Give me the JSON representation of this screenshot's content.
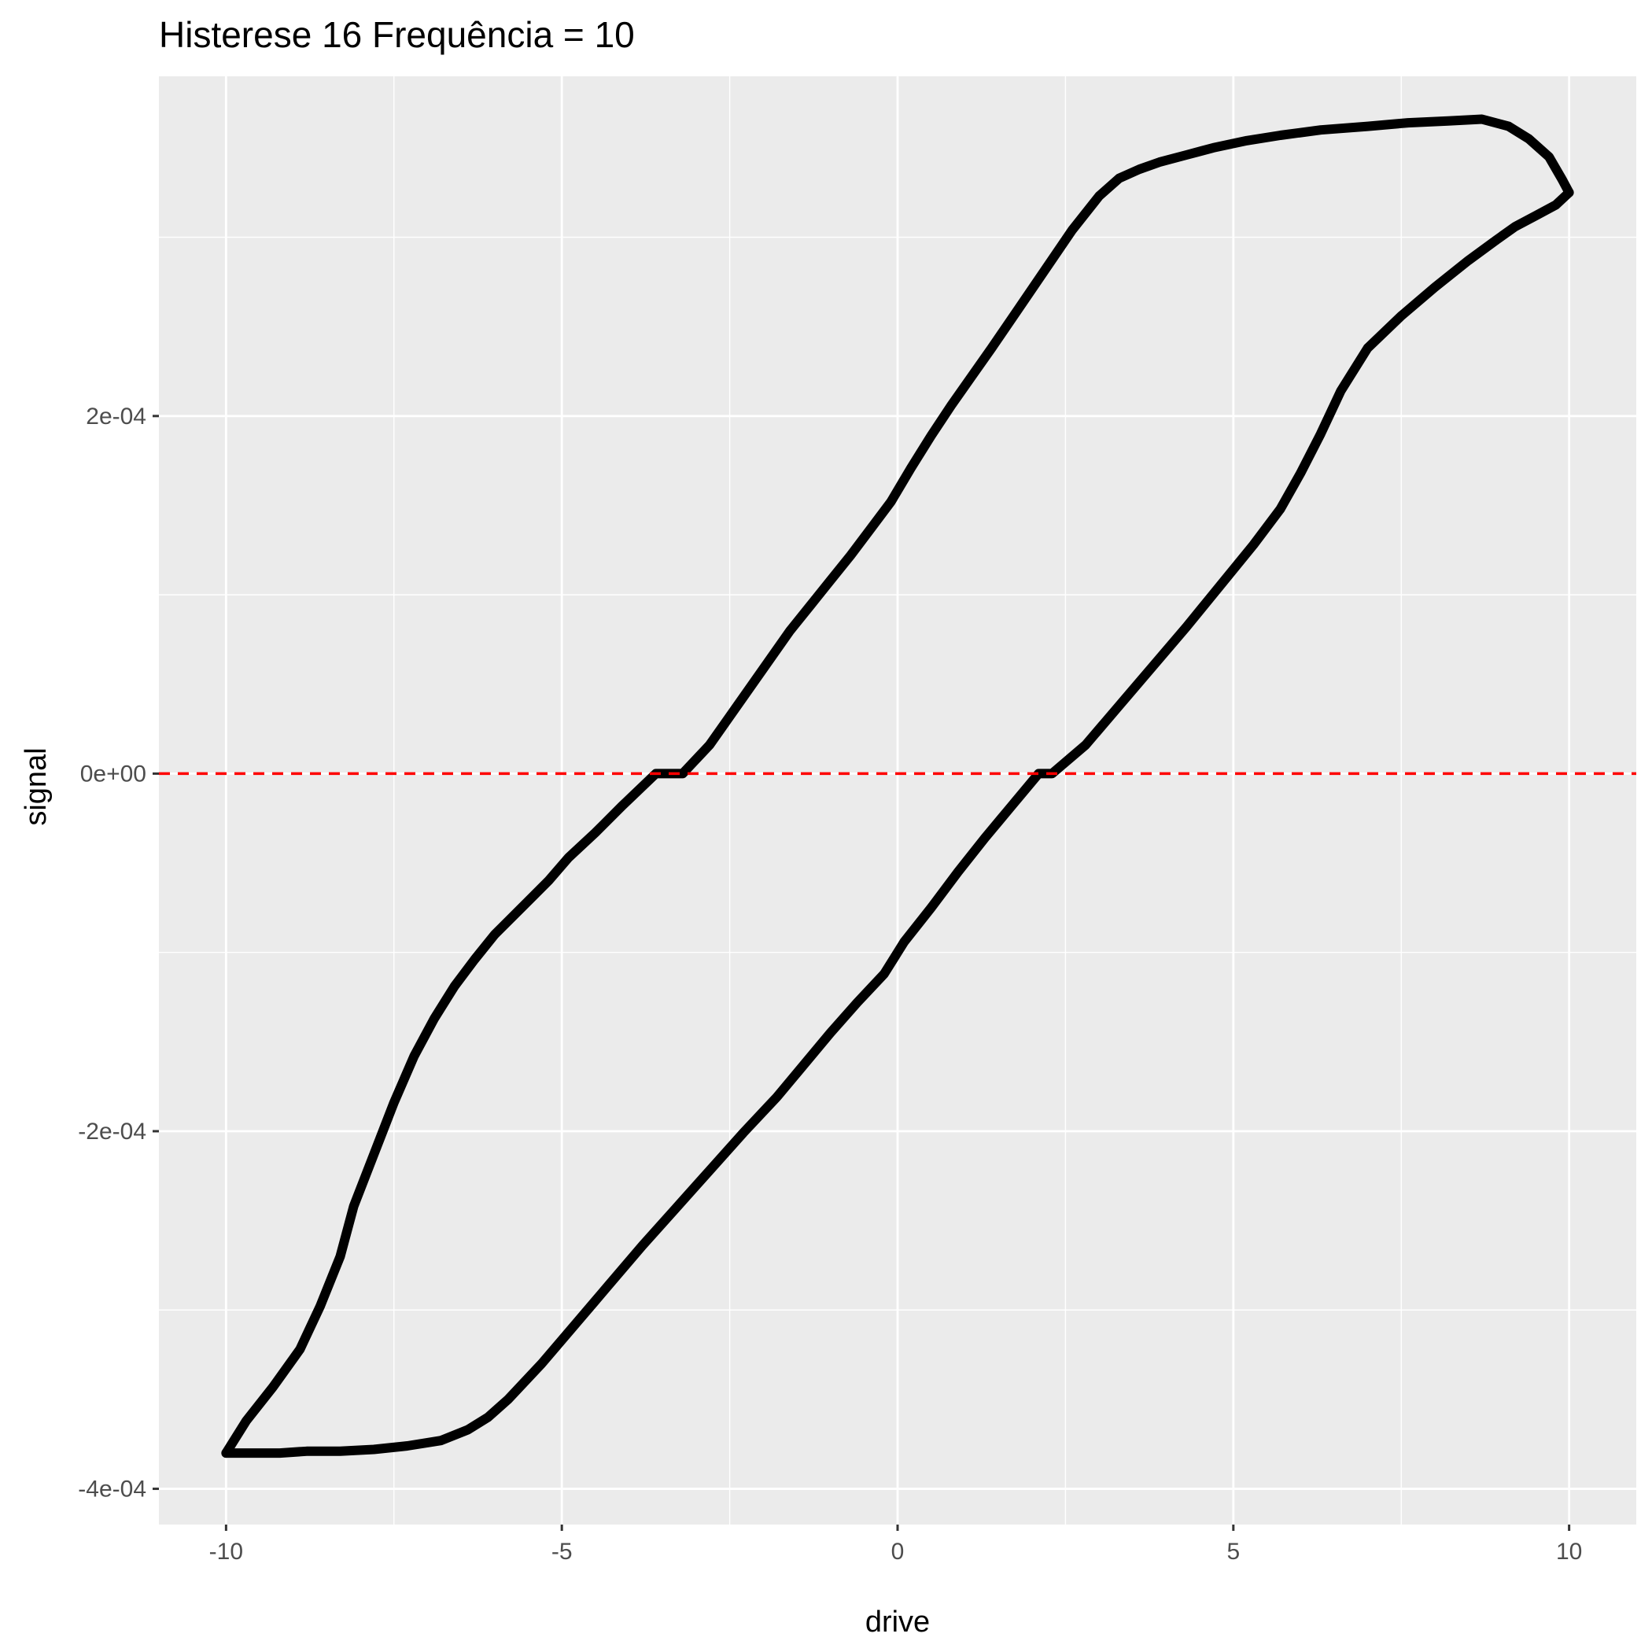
{
  "chart_data": {
    "type": "line",
    "title": "Histerese 16 Frequência = 10",
    "xlabel": "drive",
    "ylabel": "signal",
    "xlim": [
      -11,
      11
    ],
    "ylim": [
      -0.00042,
      0.00039
    ],
    "x_ticks": [
      {
        "value": -10,
        "label": "-10"
      },
      {
        "value": -5,
        "label": "-5"
      },
      {
        "value": 0,
        "label": "0"
      },
      {
        "value": 5,
        "label": "5"
      },
      {
        "value": 10,
        "label": "10"
      }
    ],
    "y_ticks": [
      {
        "value": -0.0004,
        "label": "-4e-04"
      },
      {
        "value": -0.0002,
        "label": "-2e-04"
      },
      {
        "value": 0,
        "label": "0e+00"
      },
      {
        "value": 0.0002,
        "label": "2e-04"
      }
    ],
    "x_minor": [
      -7.5,
      -2.5,
      2.5,
      7.5
    ],
    "y_minor": [
      -0.0003,
      -0.0001,
      0.0001,
      0.0003
    ],
    "grid": true,
    "reference_line": {
      "y": 0,
      "color": "#ff0000",
      "style": "dashed"
    },
    "line_color": "#000000",
    "background_color": "#ebebeb",
    "series": [
      {
        "x": [
          -10.0,
          -9.7,
          -9.3,
          -8.9,
          -8.6,
          -8.3,
          -8.1,
          -7.8,
          -7.5,
          -7.2,
          -6.9,
          -6.6,
          -6.3,
          -6.0,
          -5.6,
          -5.2,
          -4.9,
          -4.5,
          -4.1,
          -3.6,
          -3.2,
          -2.8,
          -2.5,
          -2.2,
          -1.9,
          -1.6,
          -1.3,
          -1.0,
          -0.7,
          -0.4,
          -0.1,
          0.2,
          0.5,
          0.8,
          1.1,
          1.4,
          1.8,
          2.2,
          2.6,
          3.0,
          3.3,
          3.6,
          3.9,
          4.3,
          4.7,
          5.2,
          5.7,
          6.3,
          7.0,
          7.6,
          8.2,
          8.7,
          9.1,
          9.4,
          9.7,
          9.9,
          10.0
        ],
        "y": [
          -0.00038,
          -0.000362,
          -0.000343,
          -0.000322,
          -0.000298,
          -0.00027,
          -0.000242,
          -0.000213,
          -0.000184,
          -0.000158,
          -0.000137,
          -0.000119,
          -0.000104,
          -9e-05,
          -7.5e-05,
          -6e-05,
          -4.7e-05,
          -3.3e-05,
          -1.8e-05,
          0.0,
          0.0,
          1.6e-05,
          3.2e-05,
          4.8e-05,
          6.4e-05,
          8e-05,
          9.4e-05,
          0.000108,
          0.000122,
          0.000137,
          0.000152,
          0.000171,
          0.000189,
          0.000206,
          0.000222,
          0.000238,
          0.00026,
          0.000282,
          0.000304,
          0.000323,
          0.000333,
          0.000338,
          0.000342,
          0.000346,
          0.00035,
          0.000354,
          0.000357,
          0.00036,
          0.000362,
          0.000364,
          0.000365,
          0.000366,
          0.000362,
          0.000355,
          0.000345,
          0.000332,
          0.000325
        ]
      },
      {
        "x": [
          10.0,
          9.8,
          9.5,
          9.2,
          8.9,
          8.5,
          8.0,
          7.5,
          7.0,
          6.6,
          6.3,
          6.0,
          5.7,
          5.3,
          4.8,
          4.3,
          3.8,
          3.3,
          2.8,
          2.3,
          2.1,
          1.7,
          1.3,
          0.9,
          0.5,
          0.1,
          -0.2,
          -0.6,
          -1.0,
          -1.4,
          -1.8,
          -2.3,
          -2.8,
          -3.3,
          -3.8,
          -4.3,
          -4.8,
          -5.3,
          -5.8,
          -6.1,
          -6.4,
          -6.8,
          -7.3,
          -7.8,
          -8.3,
          -8.8,
          -9.2,
          -9.6,
          -9.9,
          -10.0
        ],
        "y": [
          0.000325,
          0.000318,
          0.000312,
          0.000306,
          0.000298,
          0.000287,
          0.000272,
          0.000256,
          0.000238,
          0.000214,
          0.00019,
          0.000168,
          0.000148,
          0.000128,
          0.000105,
          8.2e-05,
          6e-05,
          3.8e-05,
          1.6e-05,
          0.0,
          0.0,
          -1.8e-05,
          -3.6e-05,
          -5.5e-05,
          -7.5e-05,
          -9.4e-05,
          -0.000112,
          -0.000128,
          -0.000145,
          -0.000163,
          -0.000181,
          -0.000201,
          -0.000222,
          -0.000243,
          -0.000264,
          -0.000286,
          -0.000308,
          -0.00033,
          -0.00035,
          -0.00036,
          -0.000367,
          -0.000373,
          -0.000376,
          -0.000378,
          -0.000379,
          -0.000379,
          -0.00038,
          -0.00038,
          -0.00038,
          -0.00038
        ]
      }
    ]
  }
}
